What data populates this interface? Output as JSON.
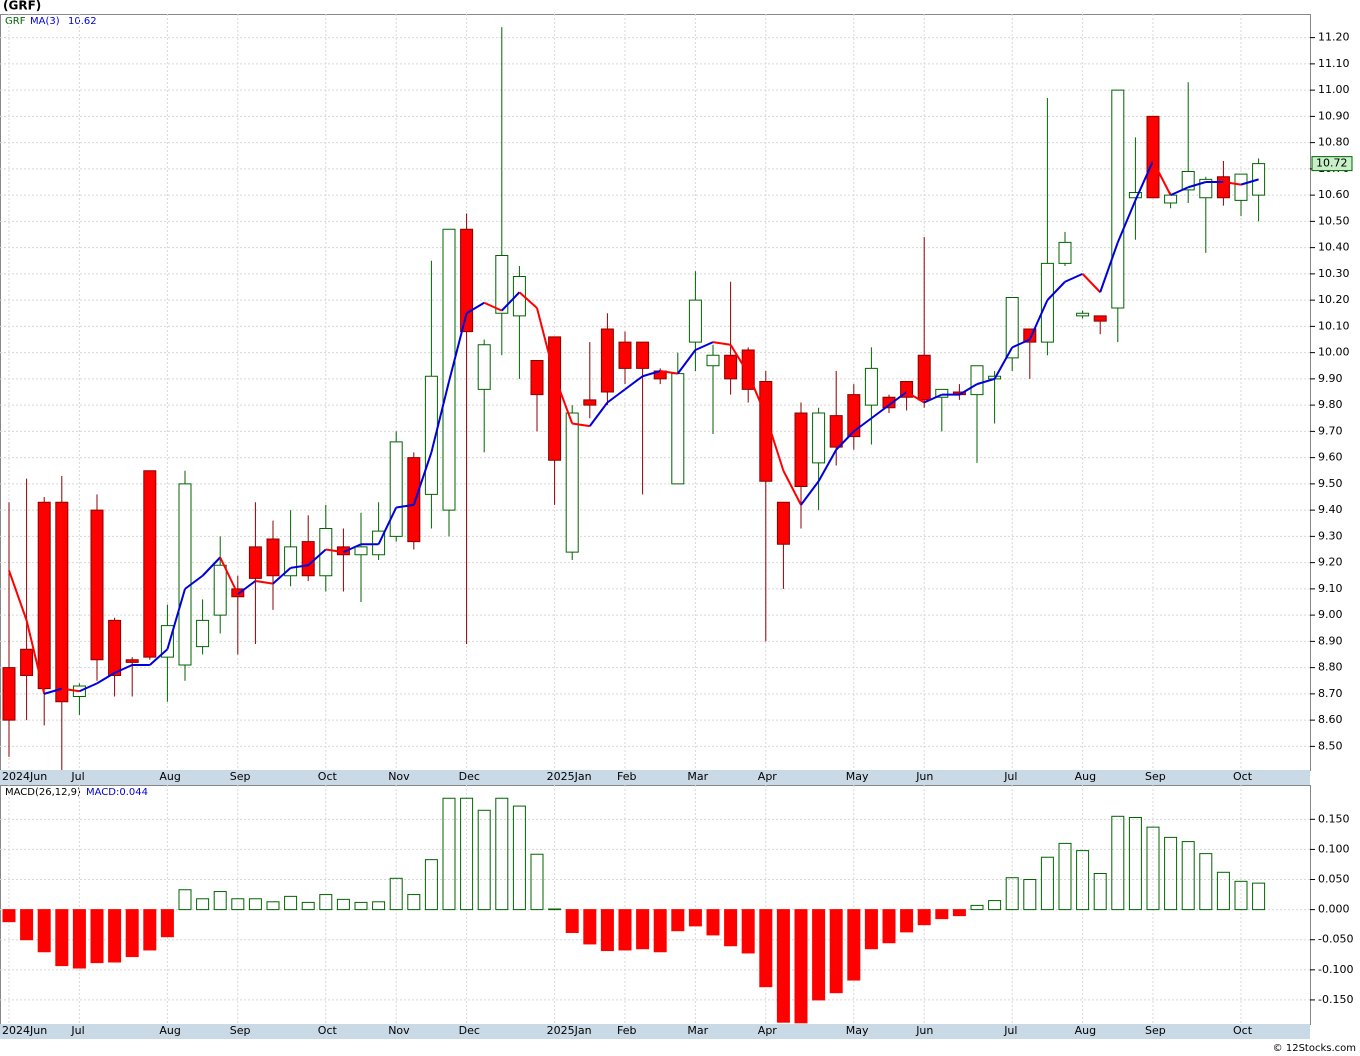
{
  "header": "(GRF)",
  "footer": "© 12Stocks.com",
  "chart_data": [
    {
      "type": "candlestick",
      "ticker": "GRF",
      "categories": [
        "2024Jun",
        null,
        null,
        null,
        "Jul",
        null,
        null,
        null,
        null,
        "Aug",
        null,
        null,
        null,
        "Sep",
        null,
        null,
        null,
        null,
        "Oct",
        null,
        null,
        null,
        "Nov",
        null,
        null,
        null,
        "Dec",
        null,
        null,
        null,
        null,
        "2025Jan",
        null,
        null,
        null,
        "Feb",
        null,
        null,
        null,
        "Mar",
        null,
        null,
        null,
        "Apr",
        null,
        null,
        null,
        null,
        "May",
        null,
        null,
        null,
        "Jun",
        null,
        null,
        null,
        null,
        "Jul",
        null,
        null,
        null,
        "Aug",
        null,
        null,
        null,
        "Sep",
        null,
        null,
        null,
        null,
        "Oct",
        null
      ],
      "open": [
        8.8,
        8.87,
        9.43,
        9.43,
        8.69,
        9.4,
        8.98,
        8.83,
        9.55,
        8.84,
        8.81,
        8.88,
        9.0,
        9.1,
        9.26,
        9.29,
        9.15,
        9.28,
        9.15,
        9.26,
        9.23,
        9.23,
        9.3,
        9.6,
        9.46,
        9.4,
        10.47,
        9.86,
        10.15,
        10.14,
        9.97,
        10.06,
        9.24,
        9.82,
        10.09,
        10.04,
        10.04,
        9.93,
        9.5,
        10.04,
        9.95,
        9.99,
        10.01,
        9.89,
        9.43,
        9.77,
        9.58,
        9.76,
        9.84,
        9.8,
        9.83,
        9.89,
        9.99,
        9.83,
        9.85,
        9.84,
        9.9,
        9.98,
        10.09,
        10.04,
        10.34,
        10.14,
        10.14,
        10.17,
        10.59,
        10.9,
        10.57,
        10.62,
        10.59,
        10.67,
        10.58,
        10.6
      ],
      "high": [
        9.43,
        9.52,
        9.45,
        9.53,
        8.74,
        9.46,
        8.99,
        8.84,
        9.55,
        9.04,
        9.55,
        9.06,
        9.3,
        9.15,
        9.43,
        9.36,
        9.4,
        9.38,
        9.42,
        9.33,
        9.39,
        9.43,
        9.7,
        9.62,
        10.35,
        10.47,
        10.53,
        10.05,
        11.24,
        10.33,
        9.97,
        10.06,
        9.8,
        10.04,
        10.15,
        10.08,
        10.04,
        9.94,
        10.0,
        10.31,
        10.03,
        10.27,
        10.02,
        9.93,
        9.43,
        9.81,
        9.79,
        9.93,
        9.88,
        10.02,
        9.84,
        9.89,
        10.44,
        9.86,
        9.88,
        9.95,
        9.93,
        10.21,
        10.09,
        10.97,
        10.46,
        10.16,
        10.14,
        11.0,
        10.82,
        10.9,
        10.61,
        11.03,
        10.67,
        10.73,
        10.68,
        10.74
      ],
      "low": [
        8.46,
        8.6,
        8.58,
        8.41,
        8.62,
        8.75,
        8.69,
        8.69,
        8.83,
        8.67,
        8.75,
        8.85,
        8.93,
        8.85,
        8.89,
        9.02,
        9.11,
        9.13,
        9.09,
        9.09,
        9.05,
        9.21,
        9.28,
        9.25,
        9.33,
        9.3,
        8.89,
        9.62,
        9.99,
        9.9,
        9.7,
        9.42,
        9.21,
        9.75,
        9.8,
        9.88,
        9.46,
        9.88,
        9.5,
        9.93,
        9.69,
        9.84,
        9.81,
        8.9,
        9.1,
        9.33,
        9.4,
        9.57,
        9.63,
        9.65,
        9.77,
        9.78,
        9.79,
        9.7,
        9.82,
        9.58,
        9.73,
        9.93,
        9.9,
        9.99,
        10.33,
        10.13,
        10.07,
        10.04,
        10.43,
        10.59,
        10.55,
        10.57,
        10.38,
        10.56,
        10.52,
        10.5
      ],
      "close": [
        8.6,
        8.77,
        8.72,
        8.67,
        8.73,
        8.83,
        8.77,
        8.82,
        8.84,
        8.96,
        9.5,
        8.98,
        9.19,
        9.07,
        9.14,
        9.15,
        9.26,
        9.15,
        9.33,
        9.23,
        9.26,
        9.32,
        9.66,
        9.28,
        9.91,
        10.47,
        10.08,
        10.03,
        10.37,
        10.29,
        9.84,
        9.59,
        9.77,
        9.8,
        9.85,
        9.94,
        9.94,
        9.9,
        9.92,
        10.2,
        9.99,
        9.9,
        9.86,
        9.51,
        9.27,
        9.49,
        9.77,
        9.64,
        9.68,
        9.94,
        9.79,
        9.83,
        9.82,
        9.86,
        9.84,
        9.95,
        9.91,
        10.21,
        10.04,
        10.34,
        10.42,
        10.15,
        10.12,
        11.0,
        10.61,
        10.59,
        10.6,
        10.69,
        10.66,
        10.59,
        10.68,
        10.72
      ],
      "ma": {
        "name": "MA(3)",
        "last": 10.62,
        "up_color": "#0000dd",
        "down_color": "#ff0000",
        "values": [
          9.17,
          8.98,
          8.7,
          8.72,
          8.71,
          8.74,
          8.78,
          8.81,
          8.81,
          8.87,
          9.1,
          9.15,
          9.22,
          9.08,
          9.13,
          9.12,
          9.18,
          9.19,
          9.25,
          9.24,
          9.27,
          9.27,
          9.41,
          9.42,
          9.62,
          9.89,
          10.15,
          10.19,
          10.16,
          10.23,
          10.17,
          9.91,
          9.73,
          9.72,
          9.81,
          9.86,
          9.91,
          9.93,
          9.92,
          10.01,
          10.04,
          10.03,
          9.92,
          9.76,
          9.55,
          9.42,
          9.51,
          9.63,
          9.7,
          9.75,
          9.8,
          9.85,
          9.81,
          9.84,
          9.84,
          9.88,
          9.9,
          10.02,
          10.05,
          10.2,
          10.27,
          10.3,
          10.23,
          10.42,
          10.58,
          10.73,
          10.6,
          10.63,
          10.65,
          10.65,
          10.64,
          10.66
        ]
      },
      "up_color": "#ffffff",
      "up_edge": "#006400",
      "down_color": "#ff0000",
      "down_edge": "#8b0000",
      "ylim": [
        8.41,
        11.29
      ],
      "yticks": [
        {
          "value": 8.5,
          "label": "8.50"
        },
        {
          "value": 8.6,
          "label": "8.60"
        },
        {
          "value": 8.7,
          "label": "8.70"
        },
        {
          "value": 8.8,
          "label": "8.80"
        },
        {
          "value": 8.9,
          "label": "8.90"
        },
        {
          "value": 9.0,
          "label": "9.00"
        },
        {
          "value": 9.1,
          "label": "9.10"
        },
        {
          "value": 9.2,
          "label": "9.20"
        },
        {
          "value": 9.3,
          "label": "9.30"
        },
        {
          "value": 9.4,
          "label": "9.40"
        },
        {
          "value": 9.5,
          "label": "9.50"
        },
        {
          "value": 9.6,
          "label": "9.60"
        },
        {
          "value": 9.7,
          "label": "9.70"
        },
        {
          "value": 9.8,
          "label": "9.80"
        },
        {
          "value": 9.9,
          "label": "9.90"
        },
        {
          "value": 10.0,
          "label": "10.00"
        },
        {
          "value": 10.1,
          "label": "10.10"
        },
        {
          "value": 10.2,
          "label": "10.20"
        },
        {
          "value": 10.3,
          "label": "10.30"
        },
        {
          "value": 10.4,
          "label": "10.40"
        },
        {
          "value": 10.5,
          "label": "10.50"
        },
        {
          "value": 10.6,
          "label": "10.60"
        },
        {
          "value": 10.7,
          "label": "10.70"
        },
        {
          "value": 10.8,
          "label": "10.80"
        },
        {
          "value": 10.9,
          "label": "10.90"
        },
        {
          "value": 11.0,
          "label": "11.00"
        },
        {
          "value": 11.1,
          "label": "11.10"
        },
        {
          "value": 11.2,
          "label": "11.20"
        }
      ],
      "grid": true
    },
    {
      "type": "bar",
      "name": "MACD(26,12,9)",
      "label": "MACD:0.044",
      "categories": [
        "2024Jun",
        null,
        null,
        null,
        "Jul",
        null,
        null,
        null,
        null,
        "Aug",
        null,
        null,
        null,
        "Sep",
        null,
        null,
        null,
        null,
        "Oct",
        null,
        null,
        null,
        "Nov",
        null,
        null,
        null,
        "Dec",
        null,
        null,
        null,
        null,
        "2025Jan",
        null,
        null,
        null,
        "Feb",
        null,
        null,
        null,
        "Mar",
        null,
        null,
        null,
        "Apr",
        null,
        null,
        null,
        null,
        "May",
        null,
        null,
        null,
        "Jun",
        null,
        null,
        null,
        null,
        "Jul",
        null,
        null,
        null,
        "Aug",
        null,
        null,
        null,
        "Sep",
        null,
        null,
        null,
        null,
        "Oct",
        null
      ],
      "values": [
        -0.02,
        -0.05,
        -0.07,
        -0.093,
        -0.097,
        -0.088,
        -0.087,
        -0.078,
        -0.067,
        -0.045,
        0.033,
        0.018,
        0.03,
        0.018,
        0.018,
        0.013,
        0.022,
        0.012,
        0.025,
        0.017,
        0.012,
        0.013,
        0.052,
        0.025,
        0.083,
        0.185,
        0.185,
        0.165,
        0.185,
        0.172,
        0.092,
        0.001,
        -0.038,
        -0.057,
        -0.068,
        -0.067,
        -0.065,
        -0.07,
        -0.035,
        -0.027,
        -0.042,
        -0.06,
        -0.072,
        -0.128,
        -0.187,
        -0.188,
        -0.15,
        -0.138,
        -0.117,
        -0.065,
        -0.055,
        -0.037,
        -0.025,
        -0.015,
        -0.01,
        0.007,
        0.015,
        0.053,
        0.05,
        0.087,
        0.11,
        0.098,
        0.06,
        0.155,
        0.153,
        0.137,
        0.12,
        0.113,
        0.093,
        0.062,
        0.047,
        0.044
      ],
      "pos_edge": "#006400",
      "neg_color": "#ff0000",
      "ylim": [
        -0.19,
        0.207
      ],
      "yticks": [
        {
          "value": -0.15,
          "label": "-0.150"
        },
        {
          "value": -0.1,
          "label": "-0.100"
        },
        {
          "value": -0.05,
          "label": "-0.050"
        },
        {
          "value": 0,
          "label": "0.000"
        },
        {
          "value": 0.05,
          "label": "0.050"
        },
        {
          "value": 0.1,
          "label": "0.100"
        },
        {
          "value": 0.15,
          "label": "0.150"
        }
      ],
      "grid": true
    }
  ]
}
